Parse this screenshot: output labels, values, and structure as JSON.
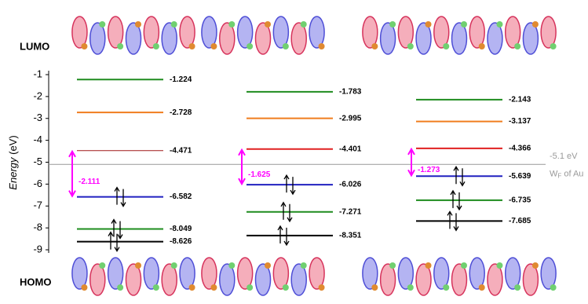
{
  "chart_data": {
    "type": "levels",
    "top_label": "LUMO",
    "bottom_label": "HOMO",
    "ylabel": {
      "text": "Energy",
      "unit": "(eV)"
    },
    "ylim": [
      -9,
      -1
    ],
    "yticks": [
      -1,
      -2,
      -3,
      -4,
      -5,
      -6,
      -7,
      -8,
      -9
    ],
    "columns": [
      {
        "values": [
          -1.224,
          -2.728,
          -4.471,
          -6.582,
          -8.049,
          -8.626
        ],
        "colors": [
          "#1e8c1e",
          "#f07d1e",
          "#a01818",
          "#2020c0",
          "#1e8c1e",
          "#000000"
        ],
        "gap": -2.111
      },
      {
        "values": [
          -1.783,
          -2.995,
          -4.401,
          -6.026,
          -7.271,
          -8.351
        ],
        "colors": [
          "#1e8c1e",
          "#f07d1e",
          "#e02020",
          "#2020c0",
          "#1e8c1e",
          "#000000"
        ],
        "gap": -1.625
      },
      {
        "values": [
          -2.143,
          -3.137,
          -4.366,
          -5.639,
          -6.735,
          -7.685
        ],
        "colors": [
          "#1e8c1e",
          "#f07d1e",
          "#e02020",
          "#2020c0",
          "#1e8c1e",
          "#000000"
        ],
        "gap": -1.273
      }
    ],
    "gap_color": "#ff00ff",
    "reference": {
      "value": -5.1,
      "label": "-5.1 eV",
      "note": [
        "W",
        "F",
        " of Au"
      ],
      "color": "#999999"
    }
  }
}
